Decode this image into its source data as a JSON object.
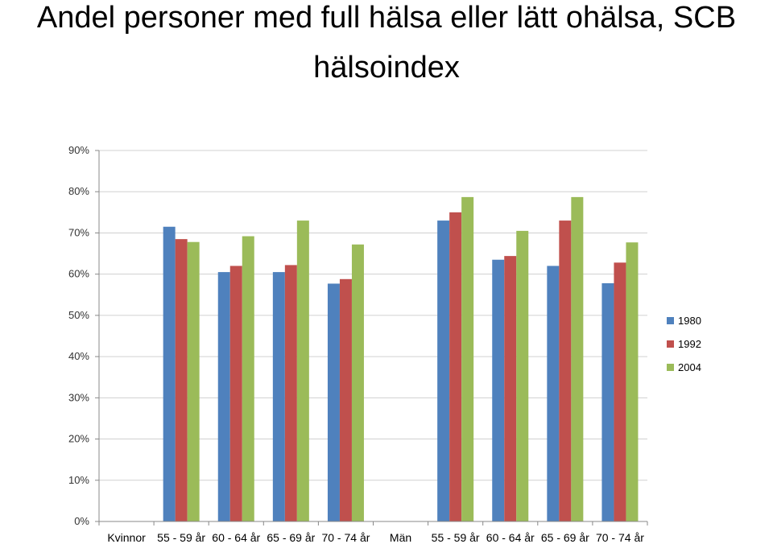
{
  "title_line1": "Andel personer med full hälsa eller lätt ohälsa, SCB",
  "title_line2": "hälsoindex",
  "chart_data": {
    "type": "bar",
    "title": "Andel personer med full hälsa eller lätt ohälsa, SCB hälsoindex",
    "categories": [
      "Kvinnor",
      "55 - 59 år",
      "60 - 64 år",
      "65 - 69 år",
      "70 - 74 år",
      "Män",
      "55 - 59 år",
      "60 - 64 år",
      "65 - 69 år",
      "70 - 74 år"
    ],
    "series": [
      {
        "name": "1980",
        "color": "#4F81BD",
        "values": [
          null,
          71.5,
          60.5,
          60.5,
          57.7,
          null,
          73.0,
          63.5,
          62.0,
          57.8
        ]
      },
      {
        "name": "1992",
        "color": "#C0504D",
        "values": [
          null,
          68.5,
          62.0,
          62.2,
          58.8,
          null,
          75.0,
          64.4,
          73.0,
          62.8
        ]
      },
      {
        "name": "2004",
        "color": "#9BBB59",
        "values": [
          null,
          67.8,
          69.2,
          73.0,
          67.2,
          null,
          78.7,
          70.5,
          78.7,
          67.7
        ]
      }
    ],
    "yticks": [
      "0%",
      "10%",
      "20%",
      "30%",
      "40%",
      "50%",
      "60%",
      "70%",
      "80%",
      "90%"
    ],
    "ylim": [
      0,
      90
    ],
    "xlabel": "",
    "ylabel": "",
    "grid": true,
    "legend_position": "right"
  }
}
